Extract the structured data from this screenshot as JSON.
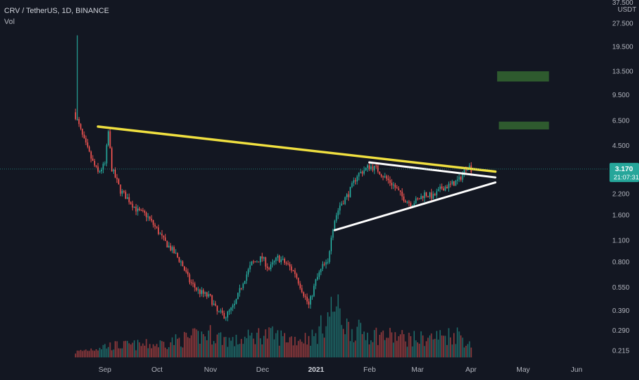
{
  "header": {
    "symbol": "CRV / TetherUS, 1D, BINANCE",
    "indicator": "Vol"
  },
  "axis": {
    "currency": "USDT",
    "top_label": "37.500",
    "price_ticks": [
      "27.500",
      "19.500",
      "13.500",
      "9.500",
      "6.500",
      "4.500",
      "2.200",
      "1.600",
      "1.100",
      "0.800",
      "0.550",
      "0.390",
      "0.290",
      "0.215"
    ],
    "current_price": "3.170",
    "countdown": "21:07:31",
    "time_ticks": [
      "Sep",
      "Oct",
      "Nov",
      "Dec",
      "2021",
      "Feb",
      "Mar",
      "Apr",
      "May",
      "Jun"
    ]
  },
  "colors": {
    "background": "#131722",
    "up": "#26a69a",
    "down": "#ef5350",
    "trendline_yellow": "#f0e040",
    "trendline_white": "#ffffff",
    "target_box": "#2e5a2e",
    "price_tag": "#26a69a"
  },
  "chart_data": {
    "type": "candlestick",
    "scale": "log",
    "ylim": [
      0.2,
      40
    ],
    "current_price": 3.17,
    "trendlines": [
      {
        "color": "yellow",
        "from": [
          "Aug 28",
          5.95
        ],
        "to": [
          "Apr 15",
          3.05
        ]
      },
      {
        "color": "white",
        "from": [
          "Feb 01",
          3.5
        ],
        "to": [
          "Apr 15",
          2.8
        ]
      },
      {
        "color": "white",
        "from": [
          "Jan 12",
          1.28
        ],
        "to": [
          "Apr 15",
          2.6
        ]
      }
    ],
    "target_zones": [
      {
        "from": "Apr 16",
        "to": "May 16",
        "low": 11.6,
        "high": 13.5
      },
      {
        "from": "Apr 17",
        "to": "May 16",
        "low": 5.7,
        "high": 6.4
      }
    ],
    "price_path": [
      [
        "Aug 15",
        7.0
      ],
      [
        "Aug 20",
        4.8
      ],
      [
        "Aug 25",
        3.5
      ],
      [
        "Aug 28",
        3.0
      ],
      [
        "Sep 01",
        3.4
      ],
      [
        "Sep 03",
        5.5
      ],
      [
        "Sep 05",
        3.2
      ],
      [
        "Sep 10",
        2.3
      ],
      [
        "Sep 15",
        2.0
      ],
      [
        "Sep 20",
        1.7
      ],
      [
        "Sep 25",
        1.6
      ],
      [
        "Oct 01",
        1.3
      ],
      [
        "Oct 05",
        1.1
      ],
      [
        "Oct 10",
        0.95
      ],
      [
        "Oct 15",
        0.8
      ],
      [
        "Oct 20",
        0.6
      ],
      [
        "Oct 25",
        0.52
      ],
      [
        "Nov 01",
        0.47
      ],
      [
        "Nov 05",
        0.38
      ],
      [
        "Nov 10",
        0.36
      ],
      [
        "Nov 15",
        0.42
      ],
      [
        "Nov 20",
        0.6
      ],
      [
        "Nov 25",
        0.78
      ],
      [
        "Dec 01",
        0.85
      ],
      [
        "Dec 05",
        0.72
      ],
      [
        "Dec 10",
        0.85
      ],
      [
        "Dec 15",
        0.78
      ],
      [
        "Dec 20",
        0.68
      ],
      [
        "Dec 25",
        0.5
      ],
      [
        "Dec 28",
        0.42
      ],
      [
        "Jan 01",
        0.6
      ],
      [
        "Jan 05",
        0.75
      ],
      [
        "Jan 08",
        0.78
      ],
      [
        "Jan 10",
        1.2
      ],
      [
        "Jan 12",
        1.5
      ],
      [
        "Jan 15",
        1.85
      ],
      [
        "Jan 20",
        2.2
      ],
      [
        "Jan 25",
        2.9
      ],
      [
        "Feb 01",
        3.3
      ],
      [
        "Feb 05",
        3.2
      ],
      [
        "Feb 10",
        2.8
      ],
      [
        "Feb 15",
        2.5
      ],
      [
        "Feb 20",
        2.1
      ],
      [
        "Feb 25",
        1.9
      ],
      [
        "Mar 01",
        2.0
      ],
      [
        "Mar 05",
        2.2
      ],
      [
        "Mar 10",
        2.1
      ],
      [
        "Mar 15",
        2.4
      ],
      [
        "Mar 20",
        2.5
      ],
      [
        "Mar 25",
        2.7
      ],
      [
        "Mar 30",
        3.4
      ],
      [
        "Apr 01",
        3.17
      ]
    ],
    "volume_profile": [
      [
        "Aug 15",
        0.1
      ],
      [
        "Sep 01",
        0.22
      ],
      [
        "Oct 01",
        0.25
      ],
      [
        "Nov 01",
        0.45
      ],
      [
        "Nov 15",
        0.3
      ],
      [
        "Dec 01",
        0.45
      ],
      [
        "Dec 20",
        0.35
      ],
      [
        "Jan 01",
        0.4
      ],
      [
        "Jan 12",
        1.0
      ],
      [
        "Jan 20",
        0.55
      ],
      [
        "Feb 01",
        0.45
      ],
      [
        "Mar 01",
        0.35
      ],
      [
        "Mar 25",
        0.45
      ],
      [
        "Apr 01",
        0.2
      ]
    ]
  }
}
